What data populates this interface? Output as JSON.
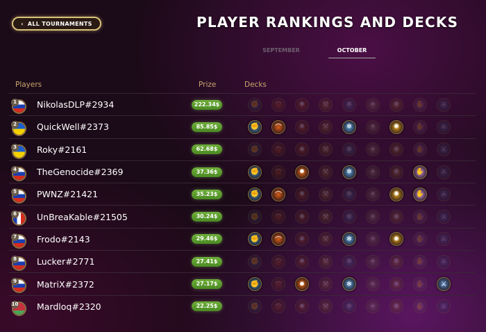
{
  "nav": {
    "back_label": "ALL TOURNAMENTS"
  },
  "header": {
    "title": "PLAYER RANKINGS AND DECKS"
  },
  "tabs": [
    {
      "label": "SEPTEMBER",
      "active": false
    },
    {
      "label": "OCTOBER",
      "active": true
    }
  ],
  "columns": {
    "players": "Players",
    "prize": "Prize",
    "decks": "Decks"
  },
  "deck_classes": [
    {
      "name": "druid",
      "glyph": "✊",
      "color": "#4a8fb8"
    },
    {
      "name": "hunter",
      "glyph": "⌒",
      "color": "#d8601a"
    },
    {
      "name": "mage",
      "glyph": "✹",
      "color": "#e06a1a"
    },
    {
      "name": "paladin",
      "glyph": "⚒",
      "color": "#d89a2a"
    },
    {
      "name": "priest",
      "glyph": "❄",
      "color": "#5a9ad0"
    },
    {
      "name": "rogue",
      "glyph": "✦",
      "color": "#c8b080"
    },
    {
      "name": "shaman",
      "glyph": "✺",
      "color": "#e0a020"
    },
    {
      "name": "warlock",
      "glyph": "✋",
      "color": "#c890e0"
    },
    {
      "name": "warrior",
      "glyph": "⚔",
      "color": "#5a88c0"
    }
  ],
  "players": [
    {
      "rank": "1",
      "name": "NikolasDLP#2934",
      "prize": "222.34$",
      "flag": "russia",
      "decks": []
    },
    {
      "rank": "2",
      "name": "QuickWell#2373",
      "prize": "85.85$",
      "flag": "ukraine",
      "decks": [
        0,
        1,
        4,
        6
      ]
    },
    {
      "rank": "3",
      "name": "Roky#2161",
      "prize": "62.68$",
      "flag": "ukraine",
      "decks": []
    },
    {
      "rank": "4",
      "name": "TheGenocide#2369",
      "prize": "37.36$",
      "flag": "russia",
      "decks": [
        0,
        2,
        4,
        7
      ]
    },
    {
      "rank": "5",
      "name": "PWNZ#21421",
      "prize": "35.23$",
      "flag": "russia",
      "decks": [
        0,
        1,
        6,
        7
      ]
    },
    {
      "rank": "6",
      "name": "UnBreaKable#21505",
      "prize": "30.24$",
      "flag": "france",
      "decks": []
    },
    {
      "rank": "7",
      "name": "Frodo#2143",
      "prize": "29.46$",
      "flag": "russia",
      "decks": [
        0,
        1,
        4,
        6
      ]
    },
    {
      "rank": "8",
      "name": "Lucker#2771",
      "prize": "27.41$",
      "flag": "russia",
      "decks": []
    },
    {
      "rank": "9",
      "name": "MatriX#2372",
      "prize": "27.17$",
      "flag": "russia",
      "decks": [
        0,
        2,
        4,
        8
      ]
    },
    {
      "rank": "10",
      "name": "Mardloq#2320",
      "prize": "22.25$",
      "flag": "belarus",
      "decks": []
    }
  ]
}
